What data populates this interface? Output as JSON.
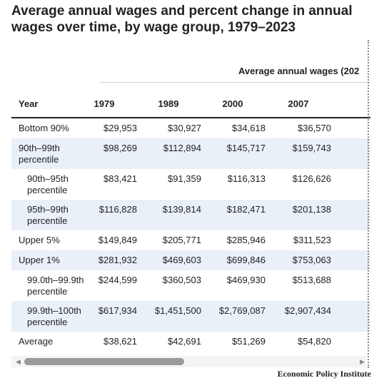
{
  "title": "Average annual wages and percent change in annual wages over time, by wage group, 1979–2023",
  "super_header": "Average annual wages (202",
  "columns": [
    "Year",
    "1979",
    "1989",
    "2000",
    "2007"
  ],
  "rows": [
    {
      "label": "Bottom 90%",
      "values": [
        "$29,953",
        "$30,927",
        "$34,618",
        "$36,570"
      ],
      "shade": false
    },
    {
      "label": "90th–99th percentile",
      "values": [
        "$98,269",
        "$112,894",
        "$145,717",
        "$159,743"
      ],
      "shade": true
    },
    {
      "label": "90th–95th percentile",
      "values": [
        "$83,421",
        "$91,359",
        "$116,313",
        "$126,626"
      ],
      "shade": false
    },
    {
      "label": "95th–99th percentile",
      "values": [
        "$116,828",
        "$139,814",
        "$182,471",
        "$201,138"
      ],
      "shade": true
    },
    {
      "label": "Upper 5%",
      "values": [
        "$149,849",
        "$205,771",
        "$285,946",
        "$311,523"
      ],
      "shade": false
    },
    {
      "label": "Upper 1%",
      "values": [
        "$281,932",
        "$469,603",
        "$699,846",
        "$753,063"
      ],
      "shade": true
    },
    {
      "label": "99.0th–99.9th percentile",
      "values": [
        "$244,599",
        "$360,503",
        "$469,930",
        "$513,688"
      ],
      "shade": false
    },
    {
      "label": "99.9th–100th percentile",
      "values": [
        "$617,934",
        "$1,451,500",
        "$2,769,087",
        "$2,907,434"
      ],
      "shade": true
    },
    {
      "label": "Average",
      "values": [
        "$38,621",
        "$42,691",
        "$51,269",
        "$54,820"
      ],
      "shade": false
    }
  ],
  "source": "Economic Policy Institute",
  "scroll_position": 0.45
}
